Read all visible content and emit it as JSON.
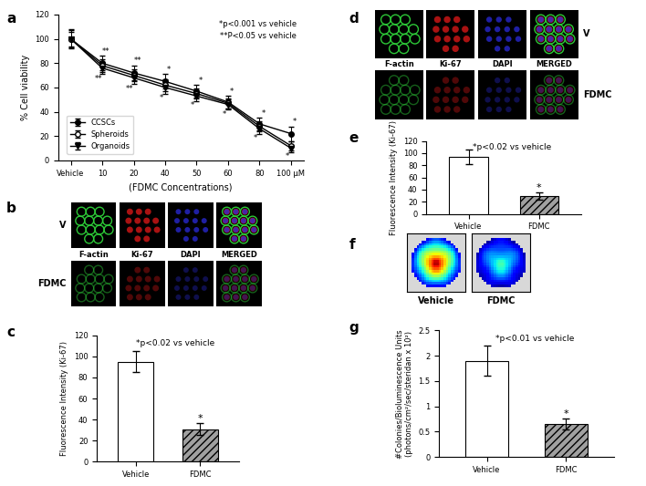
{
  "chart_data": [
    {
      "panel": "a",
      "type": "line",
      "categories": [
        "Vehicle",
        "10",
        "20",
        "40",
        "50",
        "60",
        "80",
        "100 µM"
      ],
      "x_label": "(FDMC Concentrations)",
      "y_label": "% Cell viability",
      "ylim": [
        0,
        120
      ],
      "yticks": [
        0,
        20,
        40,
        60,
        80,
        100,
        120
      ],
      "legend": "lower left",
      "annotations": [
        "*p<0.001 vs vehicle",
        "**P<0.05 vs vehicle"
      ],
      "series": [
        {
          "name": "CCSCs",
          "color": "#000000",
          "marker": "circle",
          "values": [
            100,
            80,
            72,
            65,
            57,
            48,
            30,
            22
          ],
          "error": [
            8,
            6,
            6,
            6,
            5,
            5,
            5,
            6
          ],
          "significance": [
            null,
            "**",
            "**",
            "*",
            "*",
            "*",
            "*",
            "*"
          ]
        },
        {
          "name": "Spheroids",
          "color": "#000000",
          "marker": "open_circle",
          "values": [
            100,
            78,
            70,
            62,
            55,
            47,
            28,
            12
          ],
          "error": [
            7,
            5,
            5,
            5,
            4,
            4,
            4,
            4
          ]
        },
        {
          "name": "Organoids",
          "color": "#000000",
          "marker": "triangle_down",
          "values": [
            100,
            76,
            68,
            60,
            53,
            46,
            26,
            10
          ],
          "error": [
            6,
            5,
            5,
            5,
            4,
            4,
            4,
            3
          ],
          "significance": [
            null,
            "**",
            "**",
            "*",
            "*",
            "*",
            "*",
            "*"
          ]
        }
      ]
    },
    {
      "panel": "c",
      "type": "bar",
      "categories": [
        "Vehicle",
        "FDMC"
      ],
      "values": [
        95,
        31
      ],
      "error": [
        10,
        6
      ],
      "significance": [
        null,
        "*"
      ],
      "colors": [
        "#ffffff",
        "#a0a0a0"
      ],
      "y_label": "Fluorescence Intensity (Ki-67)",
      "ylim": [
        0,
        120
      ],
      "yticks": [
        0,
        20,
        40,
        60,
        80,
        100,
        120
      ],
      "annotations": [
        "*p<0.02 vs vehicle"
      ]
    },
    {
      "panel": "e",
      "type": "bar",
      "categories": [
        "Vehicle",
        "FDMC"
      ],
      "values": [
        94,
        30
      ],
      "error": [
        12,
        6
      ],
      "significance": [
        null,
        "*"
      ],
      "colors": [
        "#ffffff",
        "#a0a0a0"
      ],
      "y_label": "Fluorescence Intensity (Ki-67)",
      "ylim": [
        0,
        120
      ],
      "yticks": [
        0,
        20,
        40,
        60,
        80,
        100,
        120
      ],
      "annotations": [
        "*p<0.02 vs vehicle"
      ]
    },
    {
      "panel": "g",
      "type": "bar",
      "categories": [
        "Vehicle",
        "FDMC"
      ],
      "values": [
        1.9,
        0.65
      ],
      "error": [
        0.3,
        0.1
      ],
      "significance": [
        null,
        "*"
      ],
      "colors": [
        "#ffffff",
        "#a0a0a0"
      ],
      "y_label": "#Colonies/Bioluminescence Units\n(photons/cm²/sec/steridan x 10²)",
      "ylim": [
        0,
        2.5
      ],
      "yticks": [
        0,
        0.5,
        1,
        1.5,
        2,
        2.5
      ],
      "annotations": [
        "*p<0.01 vs vehicle"
      ]
    }
  ],
  "image_panels": [
    {
      "panel": "b",
      "rows": [
        "V",
        "FDMC"
      ],
      "channels": [
        "F-actin",
        "Ki-67",
        "DAPI",
        "MERGED"
      ]
    },
    {
      "panel": "d",
      "rows": [
        "V",
        "FDMC"
      ],
      "channels": [
        "F-actin",
        "Ki-67",
        "DAPI",
        "MERGED"
      ]
    },
    {
      "panel": "f",
      "images": [
        "Vehicle",
        "FDMC"
      ]
    }
  ]
}
